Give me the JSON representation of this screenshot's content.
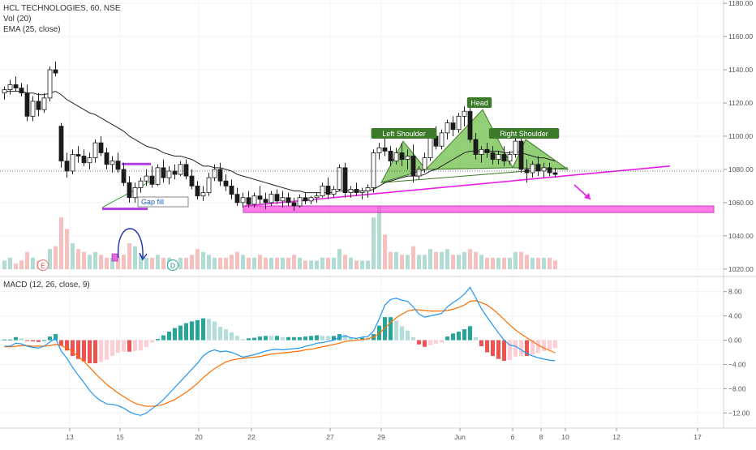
{
  "header": {
    "symbol_line": "HCL TECHNOLOGIES, 60, NSE",
    "volume_label": "Vol (20)",
    "ema_label": "EMA (25, close)"
  },
  "macd_header": {
    "label": "MACD (12, 26, close, 9)"
  },
  "annotations": {
    "left_shoulder": "Left Shoulder",
    "head": "Head",
    "right_shoulder": "Right Shoulder",
    "gap_fill": "Gap fill",
    "earnings_marker": "E",
    "dividend_marker": "D"
  },
  "colors": {
    "up": "#26a69a",
    "down": "#ef5350",
    "ema": "#222222",
    "macd_line": "#2196f3",
    "signal_line": "#ff6d00",
    "pattern_fill": "#6fbf4a",
    "trendline": "#e91ee6",
    "zone": "#ff4fe0"
  },
  "chart_data": [
    {
      "type": "candlestick",
      "title": "HCL TECHNOLOGIES, 60, NSE",
      "x_tick_labels": [
        "13",
        "15",
        "20",
        "22",
        "27",
        "29",
        "Jun",
        "6",
        "8",
        "10",
        "12",
        "17"
      ],
      "y_axis": {
        "ticks": [
          1020,
          1040,
          1060,
          1080,
          1100,
          1120,
          1140,
          1160,
          1180
        ],
        "tick_labels": [
          "1020.00",
          "1040.00",
          "1060.00",
          "1080.00",
          "1100.00",
          "1120.00",
          "1140.00",
          "1160.00",
          "1180.00"
        ],
        "range": [
          1016,
          1182
        ],
        "last_price": 1079
      },
      "ohlc": [
        [
          1126,
          1130,
          1122,
          1128
        ],
        [
          1128,
          1134,
          1125,
          1131
        ],
        [
          1131,
          1136,
          1127,
          1129
        ],
        [
          1129,
          1132,
          1124,
          1126
        ],
        [
          1126,
          1131,
          1109,
          1112
        ],
        [
          1112,
          1124,
          1109,
          1121
        ],
        [
          1121,
          1126,
          1112,
          1116
        ],
        [
          1116,
          1126,
          1114,
          1123
        ],
        [
          1123,
          1142,
          1121,
          1140
        ],
        [
          1140,
          1145,
          1136,
          1138
        ],
        [
          1106,
          1108,
          1081,
          1085
        ],
        [
          1085,
          1090,
          1075,
          1079
        ],
        [
          1079,
          1092,
          1077,
          1089
        ],
        [
          1089,
          1094,
          1084,
          1088
        ],
        [
          1088,
          1092,
          1082,
          1084
        ],
        [
          1084,
          1090,
          1080,
          1087
        ],
        [
          1087,
          1098,
          1084,
          1096
        ],
        [
          1096,
          1100,
          1088,
          1090
        ],
        [
          1090,
          1093,
          1080,
          1083
        ],
        [
          1083,
          1088,
          1078,
          1085
        ],
        [
          1085,
          1090,
          1078,
          1080
        ],
        [
          1080,
          1084,
          1070,
          1072
        ],
        [
          1072,
          1076,
          1060,
          1063
        ],
        [
          1063,
          1072,
          1060,
          1069
        ],
        [
          1069,
          1075,
          1066,
          1073
        ],
        [
          1073,
          1080,
          1070,
          1076
        ],
        [
          1076,
          1082,
          1069,
          1071
        ],
        [
          1071,
          1083,
          1070,
          1081
        ],
        [
          1081,
          1086,
          1072,
          1075
        ],
        [
          1075,
          1082,
          1071,
          1079
        ],
        [
          1079,
          1083,
          1074,
          1077
        ],
        [
          1077,
          1085,
          1076,
          1083
        ],
        [
          1083,
          1086,
          1074,
          1076
        ],
        [
          1076,
          1080,
          1068,
          1070
        ],
        [
          1070,
          1073,
          1062,
          1064
        ],
        [
          1064,
          1070,
          1061,
          1066
        ],
        [
          1066,
          1078,
          1064,
          1075
        ],
        [
          1075,
          1083,
          1073,
          1080
        ],
        [
          1080,
          1084,
          1070,
          1073
        ],
        [
          1073,
          1077,
          1067,
          1070
        ],
        [
          1070,
          1074,
          1062,
          1065
        ],
        [
          1065,
          1069,
          1058,
          1060
        ],
        [
          1060,
          1066,
          1057,
          1063
        ],
        [
          1063,
          1067,
          1057,
          1059
        ],
        [
          1059,
          1066,
          1057,
          1064
        ],
        [
          1064,
          1070,
          1059,
          1062
        ],
        [
          1062,
          1066,
          1056,
          1060
        ],
        [
          1060,
          1067,
          1058,
          1065
        ],
        [
          1065,
          1068,
          1059,
          1061
        ],
        [
          1061,
          1067,
          1057,
          1063
        ],
        [
          1063,
          1066,
          1058,
          1060
        ],
        [
          1060,
          1063,
          1055,
          1058
        ],
        [
          1058,
          1065,
          1057,
          1063
        ],
        [
          1063,
          1066,
          1059,
          1061
        ],
        [
          1061,
          1064,
          1059,
          1063
        ],
        [
          1063,
          1066,
          1060,
          1064
        ],
        [
          1064,
          1072,
          1063,
          1070
        ],
        [
          1070,
          1075,
          1062,
          1065
        ],
        [
          1065,
          1070,
          1063,
          1068
        ],
        [
          1068,
          1083,
          1067,
          1081
        ],
        [
          1081,
          1084,
          1063,
          1066
        ],
        [
          1066,
          1070,
          1063,
          1068
        ],
        [
          1068,
          1072,
          1064,
          1066
        ],
        [
          1066,
          1069,
          1062,
          1067
        ],
        [
          1067,
          1071,
          1063,
          1069
        ],
        [
          1069,
          1092,
          1066,
          1090
        ],
        [
          1090,
          1096,
          1086,
          1093
        ],
        [
          1093,
          1100,
          1088,
          1091
        ],
        [
          1091,
          1094,
          1082,
          1085
        ],
        [
          1085,
          1093,
          1083,
          1090
        ],
        [
          1090,
          1096,
          1082,
          1086
        ],
        [
          1086,
          1092,
          1080,
          1088
        ],
        [
          1088,
          1095,
          1072,
          1076
        ],
        [
          1076,
          1082,
          1074,
          1080
        ],
        [
          1080,
          1090,
          1078,
          1087
        ],
        [
          1087,
          1102,
          1085,
          1100
        ],
        [
          1100,
          1106,
          1092,
          1094
        ],
        [
          1094,
          1104,
          1092,
          1102
        ],
        [
          1102,
          1110,
          1098,
          1108
        ],
        [
          1108,
          1112,
          1100,
          1104
        ],
        [
          1104,
          1114,
          1102,
          1112
        ],
        [
          1112,
          1118,
          1106,
          1115
        ],
        [
          1115,
          1119,
          1096,
          1098
        ],
        [
          1098,
          1102,
          1086,
          1089
        ],
        [
          1089,
          1094,
          1084,
          1092
        ],
        [
          1092,
          1096,
          1087,
          1090
        ],
        [
          1090,
          1094,
          1083,
          1086
        ],
        [
          1086,
          1091,
          1083,
          1089
        ],
        [
          1089,
          1094,
          1082,
          1085
        ],
        [
          1085,
          1091,
          1083,
          1089
        ],
        [
          1089,
          1100,
          1087,
          1097
        ],
        [
          1097,
          1100,
          1078,
          1080
        ],
        [
          1080,
          1086,
          1072,
          1078
        ],
        [
          1078,
          1085,
          1075,
          1083
        ],
        [
          1083,
          1088,
          1076,
          1079
        ],
        [
          1079,
          1084,
          1075,
          1081
        ],
        [
          1081,
          1084,
          1076,
          1078
        ],
        [
          1078,
          1081,
          1075,
          1077
        ]
      ],
      "ema_25": [
        1127,
        1127,
        1127,
        1127,
        1126,
        1126,
        1125,
        1125,
        1126,
        1127,
        1125,
        1122,
        1120,
        1118,
        1116,
        1114,
        1113,
        1111,
        1109,
        1107,
        1105,
        1103,
        1100,
        1098,
        1096,
        1094,
        1093,
        1092,
        1090,
        1089,
        1088,
        1088,
        1087,
        1086,
        1084,
        1082,
        1082,
        1081,
        1081,
        1080,
        1079,
        1077,
        1076,
        1075,
        1074,
        1073,
        1072,
        1071,
        1070,
        1069,
        1068,
        1067,
        1067,
        1066,
        1066,
        1066,
        1066,
        1066,
        1066,
        1067,
        1067,
        1067,
        1067,
        1067,
        1067,
        1068,
        1070,
        1072,
        1073,
        1074,
        1075,
        1076,
        1076,
        1076,
        1077,
        1079,
        1080,
        1082,
        1084,
        1086,
        1088,
        1090,
        1091,
        1091,
        1091,
        1091,
        1091,
        1091,
        1090,
        1090,
        1091,
        1090,
        1089,
        1088,
        1087,
        1087,
        1086,
        1085
      ],
      "volume": [
        3,
        4,
        2,
        3,
        6,
        4,
        3,
        3,
        7,
        8,
        18,
        14,
        9,
        7,
        6,
        5,
        6,
        5,
        4,
        4,
        4,
        5,
        9,
        8,
        5,
        4,
        4,
        5,
        4,
        4,
        3,
        4,
        4,
        5,
        7,
        6,
        5,
        4,
        4,
        4,
        5,
        6,
        5,
        4,
        4,
        5,
        4,
        4,
        4,
        4,
        4,
        5,
        4,
        3,
        3,
        3,
        4,
        4,
        4,
        7,
        5,
        4,
        3,
        3,
        3,
        18,
        22,
        12,
        6,
        6,
        5,
        5,
        8,
        5,
        5,
        7,
        6,
        6,
        7,
        5,
        5,
        6,
        7,
        6,
        5,
        4,
        4,
        4,
        4,
        4,
        6,
        6,
        5,
        4,
        4,
        4,
        4,
        3
      ],
      "patterns": [
        {
          "name": "Left Shoulder",
          "points": [
            [
              1070,
              1072
            ],
            [
              1081,
              1097
            ],
            [
              1087,
              1080
            ]
          ]
        },
        {
          "name": "Head",
          "points": [
            [
              1087,
              1080
            ],
            [
              1106,
              1116
            ],
            [
              1118,
              1081
            ]
          ]
        },
        {
          "name": "Right Shoulder",
          "points": [
            [
              1118,
              1081
            ],
            [
              1123,
              1098
            ],
            [
              1130,
              1080
            ]
          ]
        }
      ],
      "trendline": [
        1058,
        1082
      ],
      "support_zone": [
        1054,
        1058
      ],
      "flag_channel": [
        1056,
        1083
      ]
    },
    {
      "type": "macd",
      "title": "MACD (12, 26, close, 9)",
      "y_axis": {
        "ticks": [
          8,
          4,
          0,
          -4,
          -8,
          -12
        ],
        "tick_labels": [
          "8.00",
          "4.00",
          "0.00",
          "−4.00",
          "−8.00",
          "−12.00"
        ],
        "range": [
          -14.5,
          10.5
        ]
      },
      "macd": [
        -1.0,
        -1.0,
        -0.5,
        -0.6,
        -1.0,
        -1.2,
        -1.3,
        -1.0,
        -0.3,
        0.3,
        -1.8,
        -3.0,
        -4.5,
        -5.8,
        -7.0,
        -8.3,
        -9.3,
        -10.0,
        -10.5,
        -10.6,
        -10.8,
        -11.2,
        -11.8,
        -12.2,
        -12.4,
        -12.0,
        -11.3,
        -10.6,
        -9.8,
        -8.8,
        -7.8,
        -6.8,
        -5.8,
        -4.8,
        -3.8,
        -2.6,
        -1.9,
        -1.6,
        -1.9,
        -1.8,
        -2.0,
        -2.4,
        -2.8,
        -2.6,
        -2.4,
        -2.1,
        -1.8,
        -1.6,
        -1.5,
        -1.6,
        -1.5,
        -1.4,
        -1.3,
        -1.0,
        -0.8,
        -0.5,
        -0.4,
        -0.2,
        0.0,
        0.5,
        0.7,
        0.4,
        0.3,
        0.5,
        0.6,
        1.5,
        3.5,
        5.8,
        6.7,
        6.9,
        6.6,
        6.4,
        5.5,
        4.3,
        3.8,
        4.0,
        4.2,
        4.4,
        5.5,
        6.2,
        6.8,
        7.6,
        8.7,
        7.0,
        5.2,
        3.8,
        2.5,
        1.2,
        0.0,
        -0.8,
        -1.0,
        -1.6,
        -2.2,
        -2.6,
        -2.9,
        -3.1,
        -3.3,
        -3.4
      ],
      "signal": [
        -1.1,
        -1.1,
        -1.0,
        -0.9,
        -0.9,
        -1.0,
        -1.0,
        -1.0,
        -0.9,
        -0.7,
        -0.9,
        -1.3,
        -1.9,
        -2.7,
        -3.5,
        -4.5,
        -5.5,
        -6.4,
        -7.3,
        -8.0,
        -8.7,
        -9.3,
        -9.9,
        -10.4,
        -10.7,
        -10.9,
        -10.9,
        -10.8,
        -10.6,
        -10.2,
        -9.8,
        -9.2,
        -8.6,
        -7.9,
        -7.1,
        -6.2,
        -5.4,
        -4.7,
        -4.1,
        -3.6,
        -3.3,
        -3.1,
        -3.0,
        -2.9,
        -2.8,
        -2.7,
        -2.5,
        -2.3,
        -2.2,
        -2.1,
        -2.0,
        -1.9,
        -1.8,
        -1.6,
        -1.5,
        -1.3,
        -1.1,
        -0.9,
        -0.7,
        -0.5,
        -0.2,
        -0.1,
        0.0,
        0.1,
        0.2,
        0.5,
        1.1,
        2.0,
        2.9,
        3.7,
        4.3,
        4.8,
        5.0,
        5.0,
        4.9,
        4.8,
        4.8,
        4.8,
        4.9,
        5.1,
        5.4,
        5.8,
        6.4,
        6.5,
        6.2,
        5.8,
        5.1,
        4.3,
        3.4,
        2.5,
        1.7,
        1.0,
        0.4,
        -0.2,
        -0.8,
        -1.3,
        -1.7,
        -2.1
      ]
    }
  ]
}
